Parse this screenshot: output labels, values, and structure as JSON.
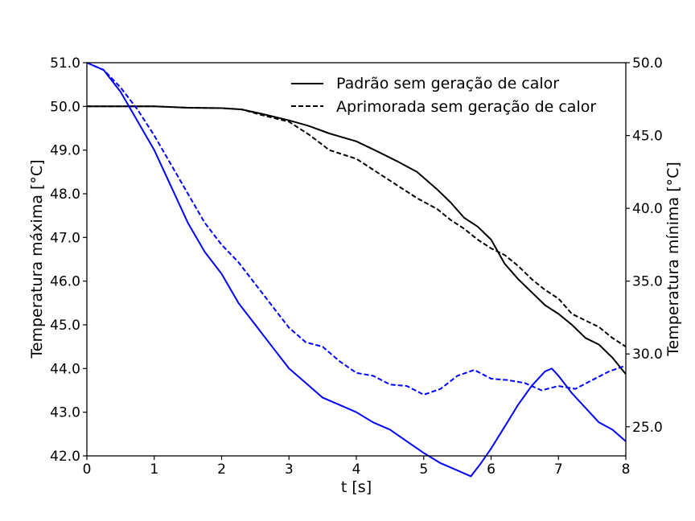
{
  "chart_data": {
    "type": "line",
    "xlabel": "t [s]",
    "ylabel_left": "Temperatura máxima [°C]",
    "ylabel_right": "Temperatura mínima [°C]",
    "xlim": [
      0,
      8
    ],
    "ylim_left": [
      42.0,
      51.0
    ],
    "ylim_right": [
      23.0,
      50.0
    ],
    "x_ticks": [
      "0",
      "1",
      "2",
      "3",
      "4",
      "5",
      "6",
      "7",
      "8"
    ],
    "y_left_ticks": [
      "42.0",
      "43.0",
      "44.0",
      "45.0",
      "46.0",
      "47.0",
      "48.0",
      "49.0",
      "50.0",
      "51.0"
    ],
    "y_right_ticks": [
      "25.0",
      "30.0",
      "35.0",
      "40.0",
      "45.0",
      "50.0"
    ],
    "legend_position": "top-right",
    "grid": false,
    "series": [
      {
        "name": "Padrão sem geração de calor",
        "axis": "left",
        "color": "#000000",
        "dash": "solid",
        "x": [
          0,
          0.5,
          1.0,
          1.5,
          2.0,
          2.3,
          2.6,
          3.0,
          3.3,
          3.6,
          4.0,
          4.3,
          4.6,
          4.9,
          5.2,
          5.4,
          5.6,
          5.8,
          6.0,
          6.2,
          6.4,
          6.6,
          6.8,
          7.0,
          7.2,
          7.4,
          7.6,
          7.8,
          8.0
        ],
        "y": [
          50.0,
          50.0,
          50.0,
          49.97,
          49.96,
          49.93,
          49.83,
          49.68,
          49.55,
          49.38,
          49.2,
          48.98,
          48.75,
          48.5,
          48.1,
          47.8,
          47.45,
          47.25,
          46.95,
          46.4,
          46.05,
          45.75,
          45.45,
          45.25,
          45.0,
          44.7,
          44.55,
          44.25,
          43.87
        ]
      },
      {
        "name": "Aprimorada sem geração de calor",
        "axis": "left",
        "color": "#000000",
        "dash": "dashed",
        "x": [
          0,
          0.5,
          1.0,
          1.5,
          2.0,
          2.3,
          2.6,
          3.0,
          3.3,
          3.6,
          4.0,
          4.3,
          4.6,
          4.9,
          5.2,
          5.4,
          5.6,
          5.8,
          6.0,
          6.2,
          6.4,
          6.6,
          6.8,
          7.0,
          7.2,
          7.4,
          7.6,
          7.8,
          8.0
        ],
        "y": [
          50.0,
          50.0,
          50.0,
          49.97,
          49.96,
          49.93,
          49.8,
          49.65,
          49.35,
          49.0,
          48.8,
          48.5,
          48.2,
          47.9,
          47.65,
          47.4,
          47.2,
          46.95,
          46.75,
          46.6,
          46.35,
          46.05,
          45.8,
          45.6,
          45.25,
          45.1,
          44.95,
          44.7,
          44.5
        ]
      },
      {
        "name": "",
        "axis": "right",
        "color": "#0000ff",
        "dash": "solid",
        "x": [
          0,
          0.25,
          0.5,
          0.75,
          1.0,
          1.25,
          1.5,
          1.75,
          2.0,
          2.25,
          2.5,
          2.75,
          3.0,
          3.25,
          3.5,
          3.75,
          4.0,
          4.25,
          4.5,
          4.75,
          5.0,
          5.25,
          5.5,
          5.7,
          5.85,
          6.0,
          6.2,
          6.4,
          6.6,
          6.8,
          6.9,
          7.0,
          7.2,
          7.4,
          7.6,
          7.8,
          8.0
        ],
        "y": [
          50.0,
          49.5,
          48.0,
          46.0,
          44.0,
          41.5,
          39.0,
          37.0,
          35.5,
          33.5,
          32.0,
          30.5,
          29.0,
          28.0,
          27.0,
          26.5,
          26.0,
          25.3,
          24.8,
          24.0,
          23.2,
          22.5,
          22.0,
          21.6,
          22.5,
          23.5,
          25.0,
          26.5,
          27.8,
          28.8,
          29.0,
          28.5,
          27.3,
          26.3,
          25.3,
          24.8,
          24.0
        ]
      },
      {
        "name": "",
        "axis": "right",
        "color": "#0000ff",
        "dash": "dashed",
        "x": [
          0,
          0.25,
          0.5,
          0.75,
          1.0,
          1.25,
          1.5,
          1.75,
          2.0,
          2.25,
          2.5,
          2.75,
          3.0,
          3.25,
          3.5,
          3.75,
          4.0,
          4.25,
          4.5,
          4.75,
          5.0,
          5.25,
          5.5,
          5.75,
          6.0,
          6.25,
          6.5,
          6.75,
          7.0,
          7.25,
          7.5,
          7.75,
          8.0
        ],
        "y": [
          50.0,
          49.5,
          48.3,
          46.8,
          45.0,
          43.0,
          41.0,
          39.0,
          37.5,
          36.3,
          34.8,
          33.3,
          31.8,
          30.8,
          30.5,
          29.5,
          28.7,
          28.5,
          27.9,
          27.8,
          27.2,
          27.6,
          28.5,
          28.9,
          28.3,
          28.2,
          28.0,
          27.5,
          27.8,
          27.6,
          28.2,
          28.8,
          29.2
        ]
      }
    ]
  }
}
